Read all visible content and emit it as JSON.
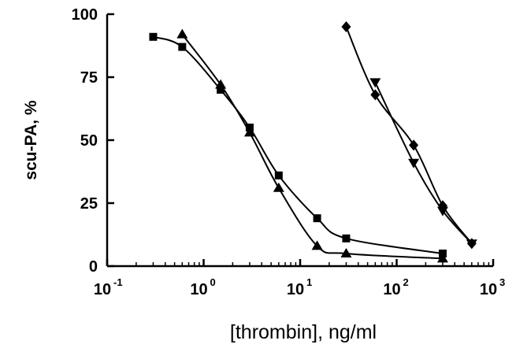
{
  "chart_data": {
    "type": "line",
    "xlabel": "[thrombin], ng/ml",
    "ylabel": "scu-PA, %",
    "xscale": "log",
    "xlim": [
      0.1,
      1000
    ],
    "ylim": [
      0,
      100
    ],
    "grid": false,
    "legend": "none",
    "x_ticks": [
      {
        "base": "10",
        "exp": "-1"
      },
      {
        "base": "10",
        "exp": "0"
      },
      {
        "base": "10",
        "exp": "1"
      },
      {
        "base": "10",
        "exp": "2"
      },
      {
        "base": "10",
        "exp": "3"
      }
    ],
    "y_ticks": [
      "0",
      "25",
      "50",
      "75",
      "100"
    ],
    "y_tick_values": [
      0,
      25,
      50,
      75,
      100
    ],
    "series": [
      {
        "marker": "square",
        "color": "#000000",
        "x": [
          0.3,
          0.6,
          1.5,
          3,
          6,
          15,
          30,
          300
        ],
        "y": [
          91,
          87,
          70,
          55,
          36,
          19,
          11,
          5
        ]
      },
      {
        "marker": "triangle-up",
        "color": "#000000",
        "x": [
          0.6,
          1.5,
          3,
          6,
          15,
          30,
          300
        ],
        "y": [
          92,
          72,
          53,
          31,
          8,
          5,
          3
        ]
      },
      {
        "marker": "diamond",
        "color": "#000000",
        "x": [
          30,
          60,
          150,
          300,
          600
        ],
        "y": [
          95,
          68,
          48,
          24,
          9
        ]
      },
      {
        "marker": "triangle-down",
        "color": "#000000",
        "x": [
          60,
          150,
          300,
          600
        ],
        "y": [
          73,
          41,
          22,
          9
        ]
      }
    ]
  }
}
